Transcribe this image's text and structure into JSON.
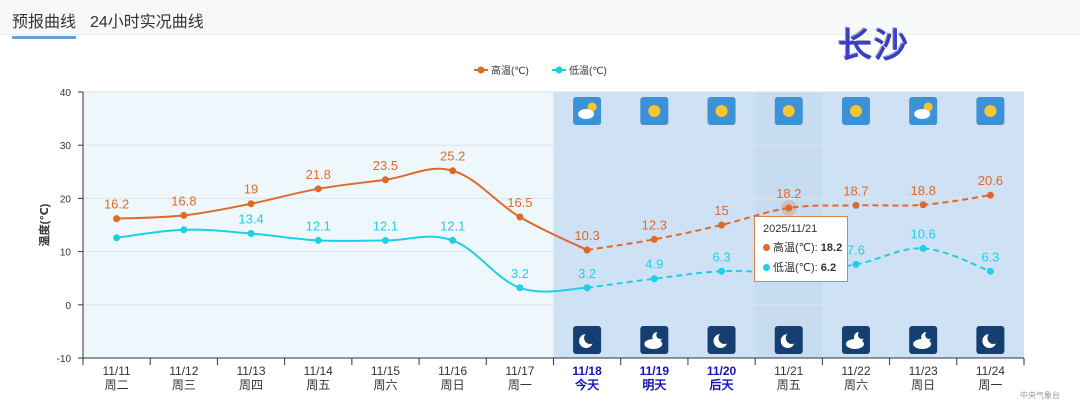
{
  "tabs": [
    {
      "label": "预报曲线",
      "active": true
    },
    {
      "label": "24小时实况曲线",
      "active": false
    }
  ],
  "city": "长沙",
  "source": "中央气象台",
  "tooltip": {
    "date": "2025/11/21",
    "high_label": "高温(℃): ",
    "high": "18.2",
    "low_label": "低温(℃): ",
    "low": "6.2"
  },
  "colors": {
    "high": "#e0692a",
    "low": "#1fcfe8",
    "forecast_bg": "#cfe2f5",
    "past_bg": "#eef8fc"
  },
  "chart_data": {
    "type": "line",
    "ylabel": "温度(℃)",
    "ylim": [
      -10,
      40
    ],
    "yticks": [
      -10,
      0,
      10,
      20,
      30,
      40
    ],
    "legend": [
      "高温(℃)",
      "低温(℃)"
    ],
    "legend_position": "top-center",
    "categories": [
      "11/11",
      "11/12",
      "11/13",
      "11/14",
      "11/15",
      "11/16",
      "11/17",
      "11/18",
      "11/19",
      "11/20",
      "11/21",
      "11/22",
      "11/23",
      "11/24"
    ],
    "weekdays": [
      "周二",
      "周三",
      "周四",
      "周五",
      "周六",
      "周日",
      "周一",
      "今天",
      "明天",
      "后天",
      "周五",
      "周六",
      "周日",
      "周一"
    ],
    "forecast_start_index": 7,
    "highlight_index": [
      7,
      8,
      9
    ],
    "series": [
      {
        "name": "高温(℃)",
        "values": [
          16.2,
          16.8,
          19,
          21.8,
          23.5,
          25.2,
          16.5,
          10.3,
          12.3,
          15,
          18.2,
          18.7,
          18.8,
          20.6
        ],
        "labels": [
          "16.2",
          "16.8",
          "19",
          "21.8",
          "23.5",
          "25.2",
          "16.5",
          "10.3",
          "12.3",
          "15",
          "18.2",
          "18.7",
          "18.8",
          "20.6"
        ]
      },
      {
        "name": "低温(℃)",
        "values": [
          12.6,
          14.1,
          13.4,
          12.1,
          12.1,
          12.1,
          3.2,
          3.2,
          4.9,
          6.3,
          6.2,
          7.6,
          10.6,
          6.3
        ],
        "labels": [
          "",
          "",
          "13.4",
          "12.1",
          "12.1",
          "12.1",
          "3.2",
          "3.2",
          "4.9",
          "6.3",
          "",
          "7.6",
          "10.6",
          "6.3"
        ]
      }
    ],
    "day_icons": [
      "partly-cloudy",
      "sunny",
      "sunny",
      "sunny",
      "sunny",
      "partly-cloudy",
      "sunny"
    ],
    "night_icons": [
      "clear-night",
      "cloudy-night",
      "clear-night",
      "clear-night",
      "cloudy-night",
      "cloudy-night",
      "clear-night"
    ]
  }
}
